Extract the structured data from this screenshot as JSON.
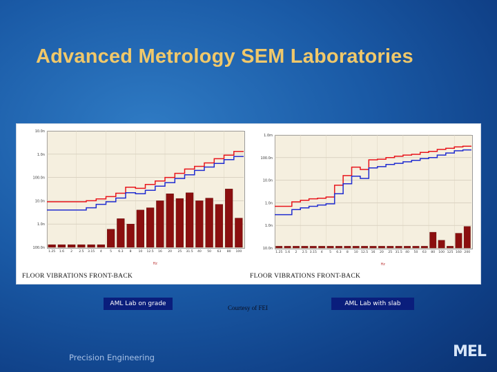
{
  "slide": {
    "title": "Advanced Metrology SEM Laboratories",
    "footer_left": "Precision Engineering",
    "courtesy": "Courtesy of FEI",
    "logo": "MEL"
  },
  "chart_data": [
    {
      "type": "bar",
      "name": "AML Lab on grade",
      "footer": "FLOOR VIBRATIONS FRONT-BACK",
      "xlabel": "Hz",
      "ylabel": "",
      "yscale": "log",
      "ylim": [
        0.1,
        10000
      ],
      "ytick_values": [
        0.1,
        1,
        10,
        100,
        1000,
        10000
      ],
      "yticks": [
        "100.0n",
        "1.0n",
        "10.0n",
        "100.0n",
        "1.0n",
        "10.0n"
      ],
      "categories": [
        "1.25",
        "1.6",
        "2",
        "2.5",
        "3.15",
        "4",
        "5",
        "6.3",
        "8",
        "10",
        "12.5",
        "16",
        "20",
        "25",
        "31.5",
        "40",
        "50",
        "63",
        "80",
        "100"
      ],
      "bar_values": [
        0.13,
        0.13,
        0.13,
        0.13,
        0.13,
        0.13,
        0.6,
        1.7,
        1.0,
        4.0,
        5.0,
        10.0,
        20.0,
        12.5,
        22.0,
        10.0,
        13.0,
        7.0,
        32.0,
        1.8
      ],
      "series": [
        {
          "values": [
            9,
            9,
            9,
            9,
            10,
            12,
            15,
            21,
            38,
            34,
            50,
            70,
            100,
            150,
            230,
            300,
            420,
            640,
            900,
            1300
          ]
        },
        {
          "values": [
            4,
            4,
            4,
            4,
            5,
            7,
            9,
            13,
            22,
            20,
            28,
            42,
            60,
            90,
            130,
            200,
            280,
            400,
            580,
            800
          ]
        }
      ],
      "colors": {
        "bars": "#8b0f0f",
        "red_line": "#e8141b",
        "blue_line": "#1f2bd0",
        "plot_bg": "#f5efdf"
      }
    },
    {
      "type": "bar",
      "name": "AML Lab with slab",
      "footer": "FLOOR VIBRATIONS FRONT-BACK",
      "xlabel": "Hz",
      "ylabel": "",
      "yscale": "log",
      "ylim": [
        0.1,
        10000
      ],
      "ytick_values": [
        0.1,
        1,
        10,
        100,
        1000,
        10000
      ],
      "yticks": [
        "10.0n",
        "1.0n",
        "1.0n",
        "10.0n",
        "100.0n",
        "1.0m"
      ],
      "categories": [
        "1.25",
        "1.6",
        "2",
        "2.5",
        "3.15",
        "4",
        "5",
        "6.3",
        "8",
        "10",
        "12.5",
        "16",
        "20",
        "25",
        "31.5",
        "40",
        "50",
        "63",
        "80",
        "100",
        "125",
        "160",
        "200"
      ],
      "bar_values": [
        0.12,
        0.12,
        0.12,
        0.12,
        0.12,
        0.12,
        0.12,
        0.12,
        0.12,
        0.12,
        0.12,
        0.12,
        0.12,
        0.12,
        0.12,
        0.12,
        0.12,
        0.12,
        0.5,
        0.22,
        0.12,
        0.45,
        0.9
      ],
      "series": [
        {
          "values": [
            7,
            7,
            11,
            13,
            15,
            16,
            18,
            60,
            160,
            380,
            300,
            800,
            850,
            1000,
            1150,
            1300,
            1400,
            1700,
            1900,
            2300,
            2600,
            3000,
            3200
          ]
        },
        {
          "values": [
            3,
            3,
            5,
            6,
            7,
            8,
            9,
            25,
            70,
            150,
            120,
            350,
            400,
            500,
            560,
            650,
            760,
            900,
            1000,
            1300,
            1600,
            2000,
            2200
          ]
        }
      ],
      "colors": {
        "bars": "#8b0f0f",
        "red_line": "#e8141b",
        "blue_line": "#1f2bd0",
        "plot_bg": "#f5efdf"
      }
    }
  ]
}
